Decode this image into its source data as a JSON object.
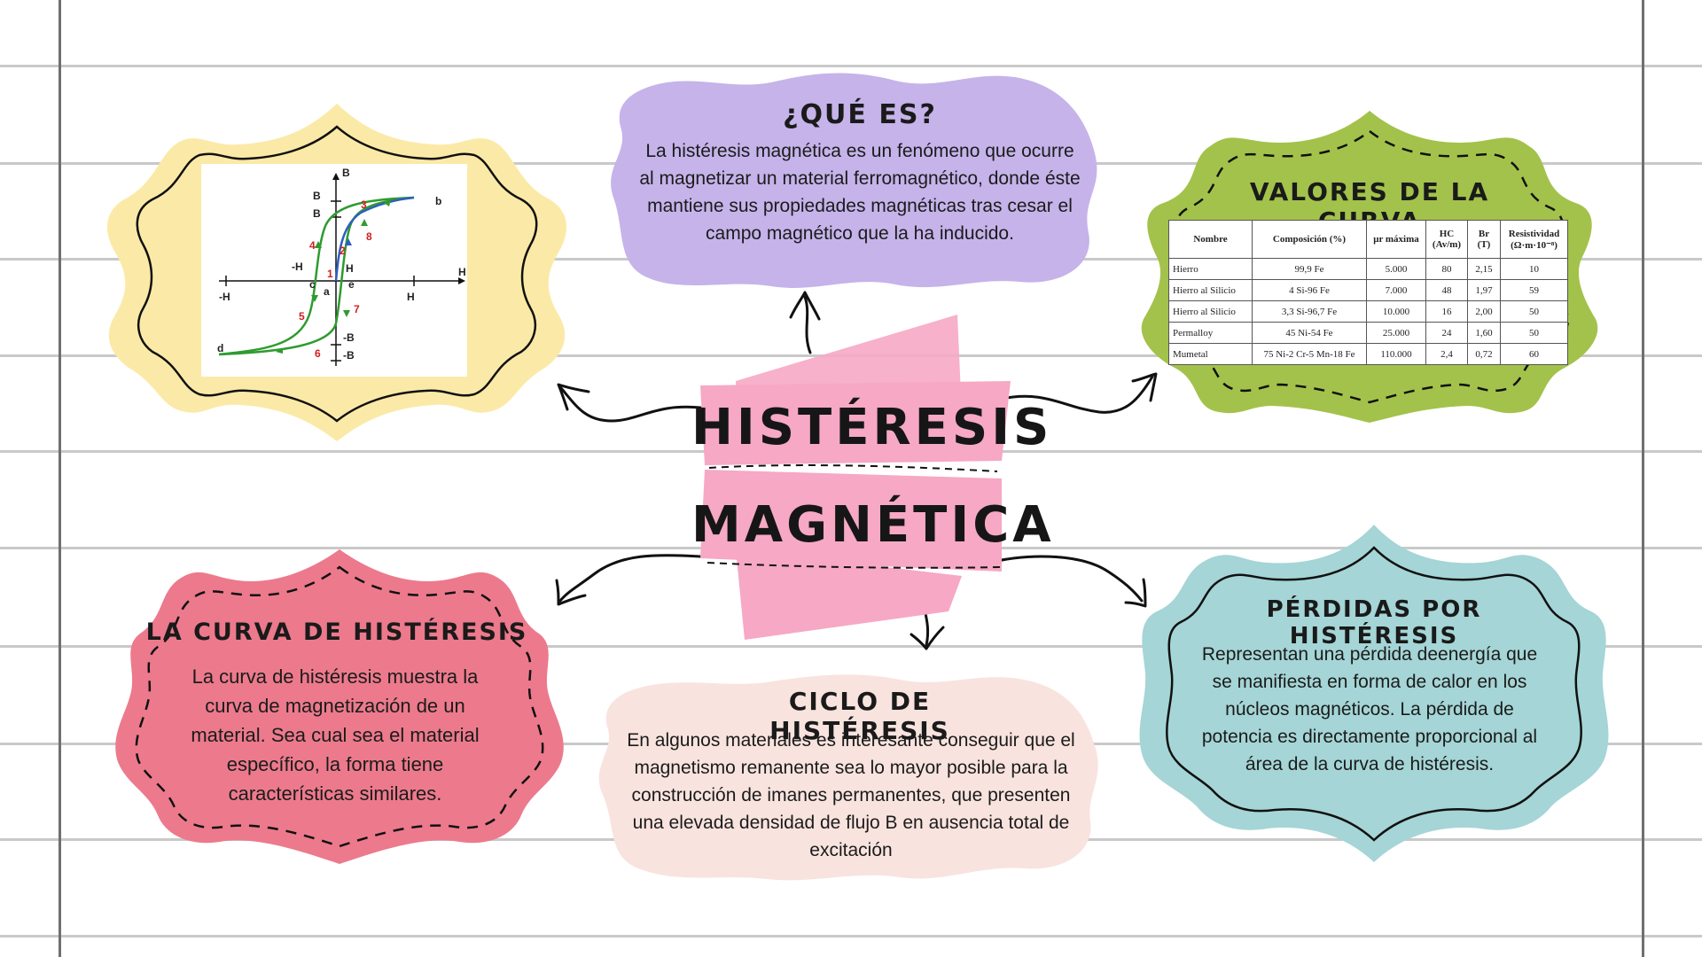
{
  "center": {
    "line1": "HISTÉRESIS",
    "line2": "MAGNÉTICA"
  },
  "que_es": {
    "title": "¿QUÉ ES?",
    "text": "La histéresis magnética es un fenómeno que ocurre al magnetizar un material ferromagnético, donde éste mantiene sus propiedades magnéticas tras cesar el campo magnético que la ha inducido."
  },
  "valores": {
    "title": "VALORES DE LA CURVA",
    "headers": [
      "Nombre",
      "Composición (%)",
      "μr máxima",
      "HC (Av/m)",
      "Br (T)",
      "Resistividad (Ω·m·10⁻⁸)"
    ],
    "rows": [
      [
        "Hierro",
        "99,9 Fe",
        "5.000",
        "80",
        "2,15",
        "10"
      ],
      [
        "Hierro al Silicio",
        "4 Si-96 Fe",
        "7.000",
        "48",
        "1,97",
        "59"
      ],
      [
        "Hierro al Silicio",
        "3,3 Si-96,7 Fe",
        "10.000",
        "16",
        "2,00",
        "50"
      ],
      [
        "Permalloy",
        "45 Ni-54 Fe",
        "25.000",
        "24",
        "1,60",
        "50"
      ],
      [
        "Mumetal",
        "75 Ni-2 Cr-5 Mn-18 Fe",
        "110.000",
        "2,4",
        "0,72",
        "60"
      ]
    ]
  },
  "curva": {
    "title": "LA CURVA DE HISTÉRESIS",
    "text": "La curva de histéresis muestra la curva de magnetización de un material. Sea cual sea el material específico, la forma tiene características similares."
  },
  "ciclo": {
    "title": "CICLO DE HISTÉRESIS",
    "text": "En algunos materiales es interesante conseguir que el magnetismo remanente sea lo mayor posible para la construcción de imanes permanentes, que presenten una elevada densidad de flujo B en ausencia total de excitación"
  },
  "perdidas": {
    "title": "PÉRDIDAS POR HISTÉRESIS",
    "text": "Representan una pérdida deenergía que se manifiesta en forma de calor en los núcleos magnéticos.  La pérdida de potencia es directamente proporcional al área de la curva de histéresis."
  },
  "graph": {
    "labels": {
      "B": "B",
      "H": "H",
      "Bi": "B",
      "Br": "B",
      "negHc": "-H",
      "Hc": "H",
      "negHi": "-H",
      "Hi": "H",
      "negBr": "-B",
      "negBi": "-B",
      "a": "a",
      "b": "b",
      "c": "c",
      "d": "d",
      "e": "e"
    },
    "subs": {
      "i": "i",
      "r": "R",
      "c": "c"
    },
    "numbers": [
      "1",
      "2",
      "3",
      "4",
      "5",
      "6",
      "7",
      "8"
    ]
  },
  "colors": {
    "yellow": "#fbeaa7",
    "purple": "#c5b3ea",
    "green": "#a3c24b",
    "pink_card": "#ec7a8c",
    "peach": "#f8e3de",
    "teal": "#a5d5d6",
    "ribbon": "#f6a8c4"
  }
}
